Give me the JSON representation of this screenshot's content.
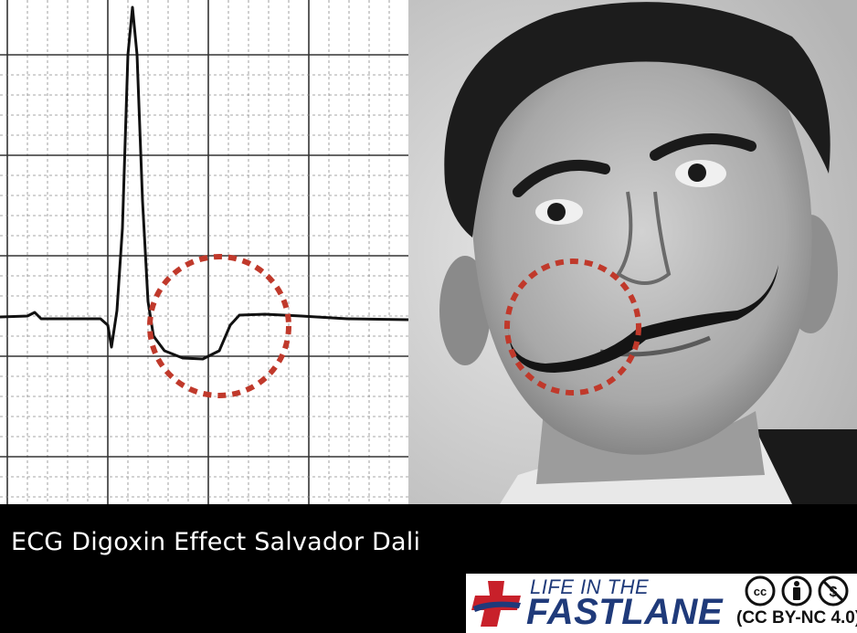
{
  "caption": "ECG Digoxin Effect Salvador Dali",
  "brand": {
    "line1": "LIFE IN THE",
    "line2": "FASTLANE",
    "license": "(CC BY-NC 4.0)",
    "primary_color": "#1f3a7a",
    "accent_color": "#c8202a"
  },
  "icons": [
    "ecg-tracing",
    "portrait-photo",
    "medical-cross-icon",
    "cc-icon",
    "by-icon",
    "nc-icon"
  ],
  "highlight_color": "#c0392b"
}
